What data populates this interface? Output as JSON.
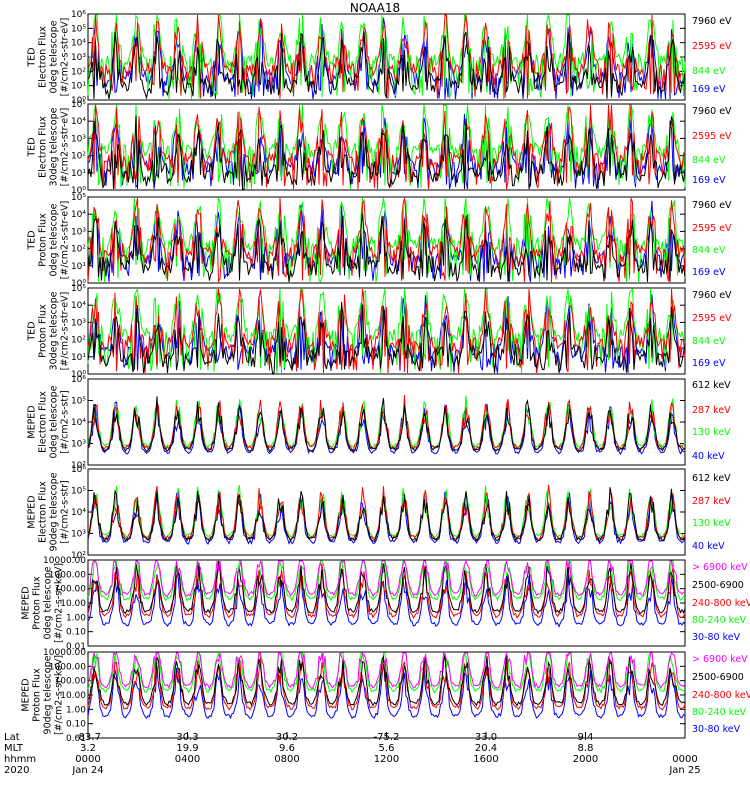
{
  "title": "NOAA18",
  "chart_data": [
    {
      "type": "line",
      "ylabel": [
        "TED",
        "Electron Flux",
        "0deg telescope",
        "[#/cm2-s-str-eV]"
      ],
      "yscale": "log",
      "ylim": [
        1,
        1000000
      ],
      "ytick_labels": [
        "10⁰",
        "10¹",
        "10²",
        "10³",
        "10⁴",
        "10⁵",
        "10⁶"
      ],
      "series": [
        {
          "name": "7960 eV",
          "color": "#000000"
        },
        {
          "name": "2595 eV",
          "color": "#ff0000"
        },
        {
          "name": "844 eV",
          "color": "#00ff00"
        },
        {
          "name": "169 eV",
          "color": "#0000ff"
        }
      ]
    },
    {
      "type": "line",
      "ylabel": [
        "TED",
        "Electron Flux",
        "30deg telescope",
        "[#/cm2-s-str-eV]"
      ],
      "yscale": "log",
      "ylim": [
        1,
        100000
      ],
      "ytick_labels": [
        "10⁰",
        "10¹",
        "10²",
        "10³",
        "10⁴",
        "10⁵"
      ],
      "series": [
        {
          "name": "7960 eV",
          "color": "#000000"
        },
        {
          "name": "2595 eV",
          "color": "#ff0000"
        },
        {
          "name": "844 eV",
          "color": "#00ff00"
        },
        {
          "name": "169 eV",
          "color": "#0000ff"
        }
      ]
    },
    {
      "type": "line",
      "ylabel": [
        "TED",
        "Proton Flux",
        "0deg telescope",
        "[#/cm2-s-str-eV]"
      ],
      "yscale": "log",
      "ylim": [
        1,
        100000
      ],
      "ytick_labels": [
        "10⁰",
        "10¹",
        "10²",
        "10³",
        "10⁴",
        "10⁵"
      ],
      "series": [
        {
          "name": "7960 eV",
          "color": "#000000"
        },
        {
          "name": "2595 eV",
          "color": "#ff0000"
        },
        {
          "name": "844 eV",
          "color": "#00ff00"
        },
        {
          "name": "169 eV",
          "color": "#0000ff"
        }
      ]
    },
    {
      "type": "line",
      "ylabel": [
        "TED",
        "Proton Flux",
        "30deg telescope",
        "[#/cm2-s-str-eV]"
      ],
      "yscale": "log",
      "ylim": [
        1,
        100000
      ],
      "ytick_labels": [
        "10⁰",
        "10¹",
        "10²",
        "10³",
        "10⁴",
        "10⁵"
      ],
      "series": [
        {
          "name": "7960 eV",
          "color": "#000000"
        },
        {
          "name": "2595 eV",
          "color": "#ff0000"
        },
        {
          "name": "844 eV",
          "color": "#00ff00"
        },
        {
          "name": "169 eV",
          "color": "#0000ff"
        }
      ]
    },
    {
      "type": "line",
      "ylabel": [
        "MEPED",
        "Electron Flux",
        "0deg telescope",
        "[#/cm2-s-str]"
      ],
      "yscale": "log",
      "ylim": [
        100,
        1000000
      ],
      "ytick_labels": [
        "10²",
        "10³",
        "10⁴",
        "10⁵",
        "10⁶"
      ],
      "series": [
        {
          "name": "612 keV",
          "color": "#000000"
        },
        {
          "name": "287 keV",
          "color": "#ff0000"
        },
        {
          "name": "130 keV",
          "color": "#00ff00"
        },
        {
          "name": "40 keV",
          "color": "#0000ff"
        }
      ]
    },
    {
      "type": "line",
      "ylabel": [
        "MEPED",
        "Electron Flux",
        "90deg telescope",
        "[#/cm2-s-str]"
      ],
      "yscale": "log",
      "ylim": [
        100,
        1000000
      ],
      "ytick_labels": [
        "10²",
        "10³",
        "10⁴",
        "10⁵",
        "10⁶"
      ],
      "series": [
        {
          "name": "612 keV",
          "color": "#000000"
        },
        {
          "name": "287 keV",
          "color": "#ff0000"
        },
        {
          "name": "130 keV",
          "color": "#00ff00"
        },
        {
          "name": "40 keV",
          "color": "#0000ff"
        }
      ]
    },
    {
      "type": "line",
      "ylabel": [
        "MEPED",
        "Proton Flux",
        "0deg telescope",
        "[#/cm2-s-sr-keV]"
      ],
      "yscale": "log",
      "ylim": [
        0.01,
        10000
      ],
      "ytick_labels": [
        "0.01",
        "0.10",
        "1.00",
        "10.00",
        "100.00",
        "1000.00",
        "10000.00"
      ],
      "series": [
        {
          "name": "> 6900 keV",
          "color": "#ff00ff"
        },
        {
          "name": "2500-6900",
          "color": "#000000"
        },
        {
          "name": "240-800 keV",
          "color": "#ff0000"
        },
        {
          "name": "80-240 keV",
          "color": "#00ff00"
        },
        {
          "name": "30-80 keV",
          "color": "#0000ff"
        }
      ]
    },
    {
      "type": "line",
      "ylabel": [
        "MEPED",
        "Proton Flux",
        "90deg telescope",
        "[#/cm2-s-sr-keV]"
      ],
      "yscale": "log",
      "ylim": [
        0.01,
        10000
      ],
      "ytick_labels": [
        "0.01",
        "0.10",
        "1.00",
        "10.00",
        "100.00",
        "1000.00",
        "10000.00"
      ],
      "series": [
        {
          "name": "> 6900 keV",
          "color": "#ff00ff"
        },
        {
          "name": "2500-6900",
          "color": "#000000"
        },
        {
          "name": "240-800 keV",
          "color": "#ff0000"
        },
        {
          "name": "80-240 keV",
          "color": "#00ff00"
        },
        {
          "name": "30-80 keV",
          "color": "#0000ff"
        }
      ]
    }
  ],
  "xaxis": {
    "row_labels": [
      "Lat",
      "MLT",
      "hhmm",
      "2020"
    ],
    "ticks": [
      {
        "lat": "-83.7",
        "mlt": "3.2",
        "hhmm": "0000",
        "date": "Jan 24"
      },
      {
        "lat": "30.3",
        "mlt": "19.9",
        "hhmm": "0400",
        "date": ""
      },
      {
        "lat": "30.2",
        "mlt": "9.6",
        "hhmm": "0800",
        "date": ""
      },
      {
        "lat": "-75.2",
        "mlt": "5.6",
        "hhmm": "1200",
        "date": ""
      },
      {
        "lat": "33.0",
        "mlt": "20.4",
        "hhmm": "1600",
        "date": ""
      },
      {
        "lat": "9.4",
        "mlt": "8.8",
        "hhmm": "2000",
        "date": ""
      },
      {
        "lat": "",
        "mlt": "",
        "hhmm": "0000",
        "date": "Jan 25"
      }
    ]
  }
}
